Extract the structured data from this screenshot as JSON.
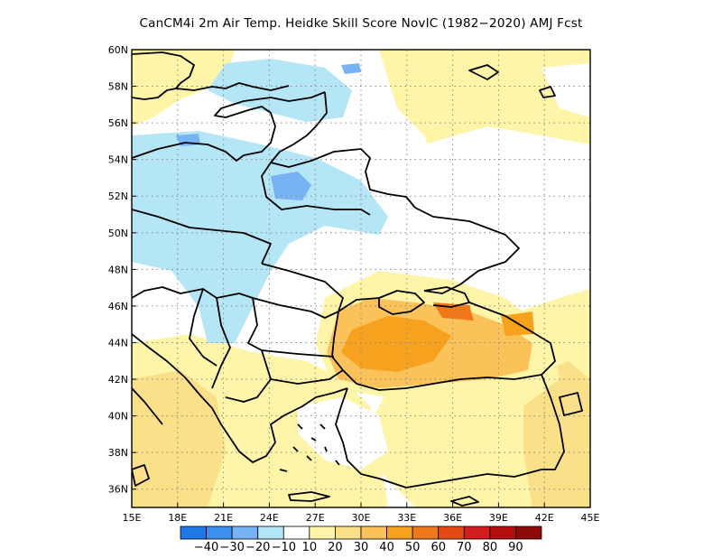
{
  "title": "CanCM4i  2m Air Temp. Heidke Skill Score NovIC (1982−2020) AMJ Fcst",
  "map": {
    "lon_labels": [
      "15E",
      "18E",
      "21E",
      "24E",
      "27E",
      "30E",
      "33E",
      "36E",
      "39E",
      "42E",
      "45E"
    ],
    "lat_labels": [
      "60N",
      "58N",
      "56N",
      "54N",
      "52N",
      "50N",
      "48N",
      "46N",
      "44N",
      "42N",
      "40N",
      "38N",
      "36N"
    ],
    "lon_range": [
      15,
      45
    ],
    "lat_range": [
      35,
      60
    ],
    "gridlines": "dotted"
  },
  "colorbar": {
    "labels": [
      "−40",
      "−30",
      "−20",
      "−10",
      "10",
      "20",
      "30",
      "40",
      "50",
      "60",
      "70",
      "80",
      "90"
    ],
    "colors": [
      "#1f78e6",
      "#3c91f0",
      "#78b4f5",
      "#b4e6f5",
      "#ffffff",
      "#fff5a8",
      "#fbe08a",
      "#fbc25a",
      "#f6a21e",
      "#f07818",
      "#e34a14",
      "#d21e1e",
      "#b40f0f",
      "#8c0a0a"
    ]
  },
  "palette": {
    "white": "#ffffff",
    "light_yellow": "#fff5a8",
    "yellow": "#fbe08a",
    "light_orange": "#fbc25a",
    "orange": "#f6a21e",
    "dark_orange": "#f07818",
    "pale_blue": "#b4e6f5",
    "light_blue": "#78b4f5",
    "mid_blue": "#3c91f0"
  }
}
